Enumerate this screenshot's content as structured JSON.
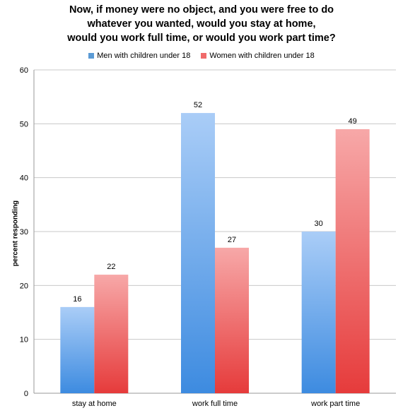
{
  "chart_data": {
    "type": "bar",
    "title_lines": [
      "Now, if money were no object, and you were free to do",
      "whatever you wanted, would you stay at home,",
      "would you work full time, or would you work part time?"
    ],
    "categories": [
      "stay at home",
      "work full time",
      "work part time"
    ],
    "series": [
      {
        "name": "Men with children under 18",
        "values": [
          16,
          52,
          30
        ],
        "color": "#5b9bd5"
      },
      {
        "name": "Women with children under 18",
        "values": [
          22,
          27,
          49
        ],
        "color": "#e84a4a"
      }
    ],
    "ylabel": "percent responding",
    "xlabel": "",
    "ylim": [
      0,
      60
    ],
    "yticks": [
      0,
      10,
      20,
      30,
      40,
      50,
      60
    ],
    "grid": true,
    "legend_position": "top"
  }
}
